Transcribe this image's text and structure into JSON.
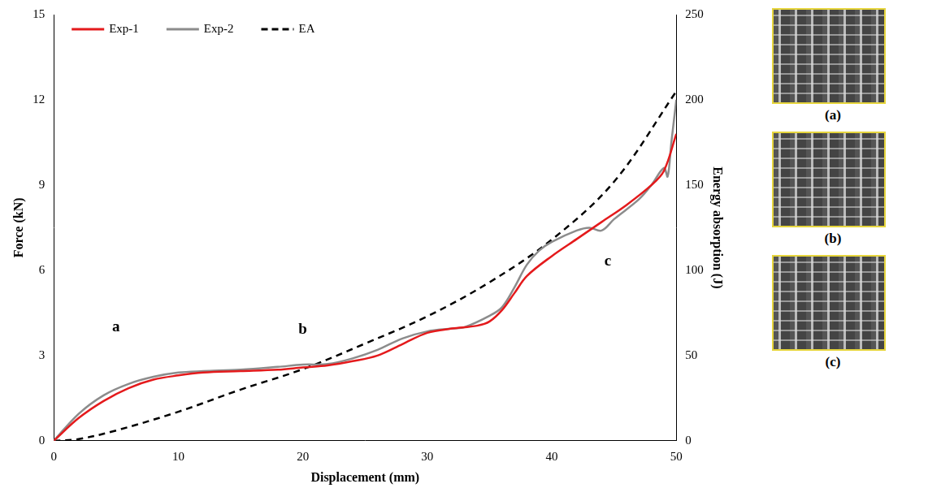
{
  "chart_data": {
    "type": "line",
    "x_label": "Displacement (mm)",
    "y_label": "Force (kN)",
    "y2_label": "Energy absorption (J)",
    "xlim": [
      0,
      50
    ],
    "xticks": [
      0,
      10,
      20,
      30,
      40,
      50
    ],
    "ylim": [
      0,
      15
    ],
    "yticks": [
      0,
      3,
      6,
      9,
      12,
      15
    ],
    "y2lim": [
      0,
      250
    ],
    "y2ticks": [
      0,
      50,
      100,
      150,
      200,
      250
    ],
    "grid": false,
    "legend": "top-left",
    "series": [
      {
        "name": "Exp-1",
        "color": "#e41a1c",
        "line_style": "solid",
        "x": [
          0,
          2,
          4,
          6,
          8,
          10,
          12,
          15,
          18,
          20,
          22,
          24,
          26,
          28,
          30,
          32,
          34,
          35,
          36,
          37,
          38,
          40,
          42,
          44,
          46,
          48,
          49,
          50
        ],
        "values": [
          0,
          0.8,
          1.4,
          1.85,
          2.15,
          2.3,
          2.4,
          2.45,
          2.5,
          2.58,
          2.65,
          2.8,
          3.0,
          3.4,
          3.8,
          3.95,
          4.05,
          4.2,
          4.6,
          5.2,
          5.8,
          6.5,
          7.1,
          7.7,
          8.3,
          9.0,
          9.5,
          10.8
        ]
      },
      {
        "name": "Exp-2",
        "color": "#8c8c8c",
        "line_style": "solid",
        "x": [
          0,
          2,
          4,
          6,
          8,
          10,
          12,
          15,
          18,
          20,
          22,
          24,
          26,
          28,
          30,
          32,
          33,
          35,
          36,
          37,
          38,
          39,
          40,
          42,
          43,
          44,
          45,
          47,
          48,
          49,
          49.3,
          49.6,
          50
        ],
        "values": [
          0,
          0.95,
          1.6,
          2.0,
          2.25,
          2.4,
          2.45,
          2.5,
          2.6,
          2.68,
          2.7,
          2.9,
          3.2,
          3.6,
          3.85,
          3.95,
          4.0,
          4.4,
          4.7,
          5.4,
          6.2,
          6.7,
          7.0,
          7.4,
          7.5,
          7.4,
          7.8,
          8.5,
          9.0,
          9.6,
          9.3,
          10.5,
          12.0
        ]
      },
      {
        "name": "EA",
        "color": "#000000",
        "line_style": "dashed",
        "axis": "y2",
        "x": [
          0,
          2,
          5,
          10,
          15,
          20,
          25,
          30,
          35,
          40,
          45,
          50
        ],
        "values": [
          0,
          1,
          6,
          17,
          30,
          42,
          57,
          73,
          93,
          118,
          152,
          205
        ]
      }
    ],
    "annotations": [
      {
        "text": "a",
        "x": 5,
        "y": 4.0
      },
      {
        "text": "b",
        "x": 20,
        "y": 3.9
      },
      {
        "text": "c",
        "x": 44.5,
        "y": 6.3
      }
    ],
    "image_labels": [
      "(a)",
      "(b)",
      "(c)"
    ]
  }
}
